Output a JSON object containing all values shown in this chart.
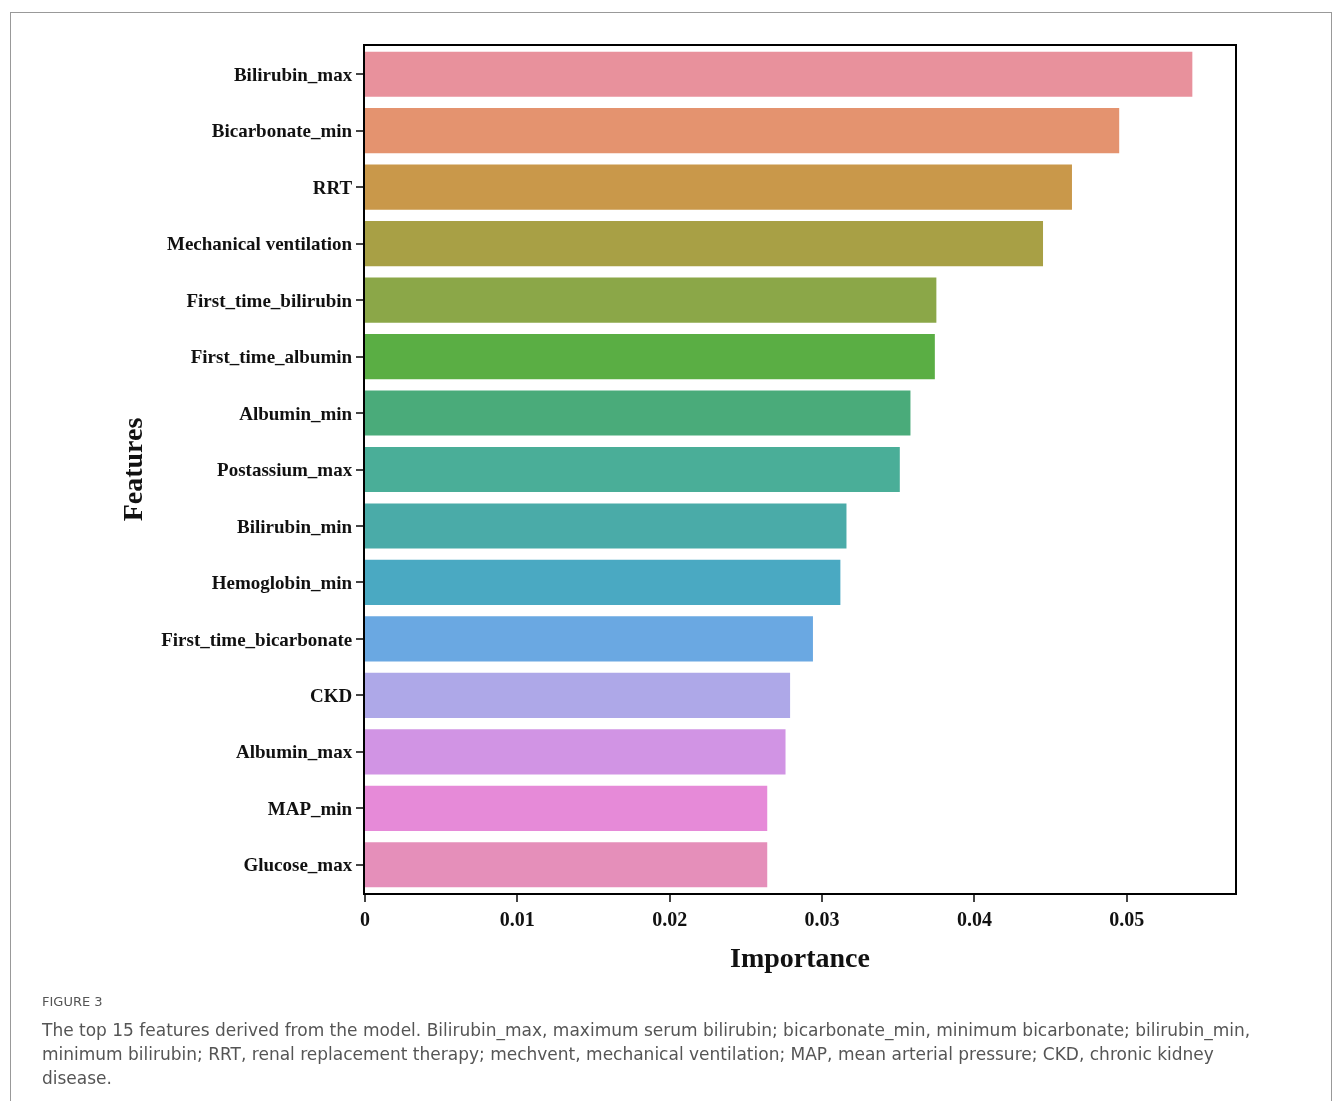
{
  "chart_data": {
    "type": "bar",
    "orientation": "horizontal",
    "xlabel": "Importance",
    "ylabel": "Features",
    "categories": [
      "Bilirubin_max",
      "Bicarbonate_min",
      "RRT",
      "Mechanical ventilation",
      "First_time_bilirubin",
      "First_time_albumin",
      "Albumin_min",
      "Postassium_max",
      "Bilirubin_min",
      "Hemoglobin_min",
      "First_time_bicarbonate",
      "CKD",
      "Albumin_max",
      "MAP_min",
      "Glucose_max"
    ],
    "values": [
      0.0543,
      0.0495,
      0.0464,
      0.0445,
      0.0375,
      0.0374,
      0.0358,
      0.0351,
      0.0316,
      0.0312,
      0.0294,
      0.0279,
      0.0276,
      0.0264,
      0.0264
    ],
    "colors": [
      "#e8919c",
      "#e4936f",
      "#c9984a",
      "#a8a045",
      "#8ba748",
      "#5aae44",
      "#4aab7a",
      "#4aae98",
      "#4aaba8",
      "#4aa9c2",
      "#6aa8e2",
      "#aea8e8",
      "#d194e4",
      "#e68ad8",
      "#e58fba"
    ],
    "xlim": [
      0,
      0.0571
    ],
    "xticks": [
      {
        "value": 0,
        "label": "0"
      },
      0.01,
      0.02,
      0.03,
      0.04,
      0.05
    ],
    "grid": false,
    "annotations": [
      "FIGURE 3",
      "The top 15 features derived from the model. Bilirubin_max, maximum serum bilirubin; bicarbonate_min, minimum bicarbonate; bilirubin_min, minimum bilirubin; RRT, renal replacement therapy; mechvent, mechanical ventilation; MAP, mean arterial pressure; CKD, chronic kidney disease."
    ]
  }
}
